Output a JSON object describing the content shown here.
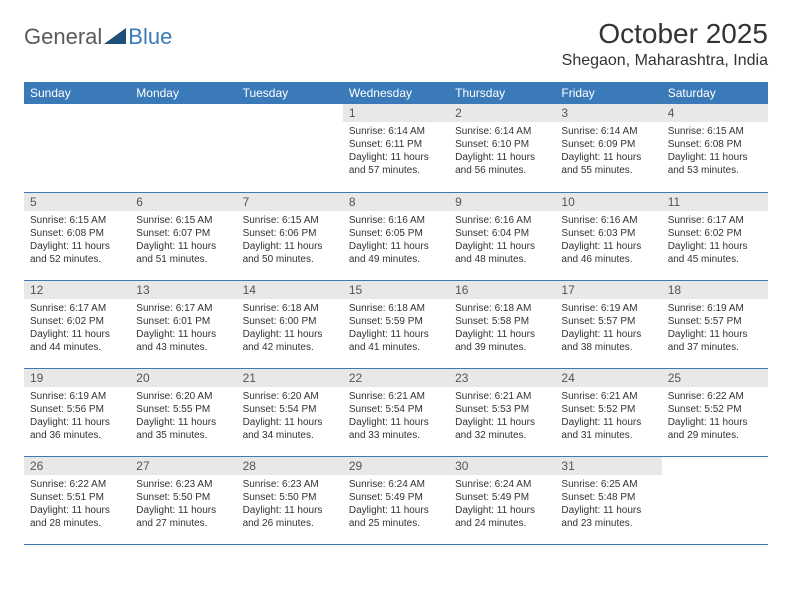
{
  "logo": {
    "text1": "General",
    "text2": "Blue",
    "icon_color": "#1e4e79"
  },
  "title": "October 2025",
  "location": "Shegaon, Maharashtra, India",
  "header_bg": "#3a7ab8",
  "header_fg": "#ffffff",
  "daynum_bg": "#e8e8e8",
  "border_color": "#3a7ab8",
  "body_text_color": "#333333",
  "font_family": "Arial",
  "daynames": [
    "Sunday",
    "Monday",
    "Tuesday",
    "Wednesday",
    "Thursday",
    "Friday",
    "Saturday"
  ],
  "weeks": [
    [
      {
        "n": "",
        "sr": "",
        "ss": "",
        "dl": ""
      },
      {
        "n": "",
        "sr": "",
        "ss": "",
        "dl": ""
      },
      {
        "n": "",
        "sr": "",
        "ss": "",
        "dl": ""
      },
      {
        "n": "1",
        "sr": "Sunrise: 6:14 AM",
        "ss": "Sunset: 6:11 PM",
        "dl": "Daylight: 11 hours and 57 minutes."
      },
      {
        "n": "2",
        "sr": "Sunrise: 6:14 AM",
        "ss": "Sunset: 6:10 PM",
        "dl": "Daylight: 11 hours and 56 minutes."
      },
      {
        "n": "3",
        "sr": "Sunrise: 6:14 AM",
        "ss": "Sunset: 6:09 PM",
        "dl": "Daylight: 11 hours and 55 minutes."
      },
      {
        "n": "4",
        "sr": "Sunrise: 6:15 AM",
        "ss": "Sunset: 6:08 PM",
        "dl": "Daylight: 11 hours and 53 minutes."
      }
    ],
    [
      {
        "n": "5",
        "sr": "Sunrise: 6:15 AM",
        "ss": "Sunset: 6:08 PM",
        "dl": "Daylight: 11 hours and 52 minutes."
      },
      {
        "n": "6",
        "sr": "Sunrise: 6:15 AM",
        "ss": "Sunset: 6:07 PM",
        "dl": "Daylight: 11 hours and 51 minutes."
      },
      {
        "n": "7",
        "sr": "Sunrise: 6:15 AM",
        "ss": "Sunset: 6:06 PM",
        "dl": "Daylight: 11 hours and 50 minutes."
      },
      {
        "n": "8",
        "sr": "Sunrise: 6:16 AM",
        "ss": "Sunset: 6:05 PM",
        "dl": "Daylight: 11 hours and 49 minutes."
      },
      {
        "n": "9",
        "sr": "Sunrise: 6:16 AM",
        "ss": "Sunset: 6:04 PM",
        "dl": "Daylight: 11 hours and 48 minutes."
      },
      {
        "n": "10",
        "sr": "Sunrise: 6:16 AM",
        "ss": "Sunset: 6:03 PM",
        "dl": "Daylight: 11 hours and 46 minutes."
      },
      {
        "n": "11",
        "sr": "Sunrise: 6:17 AM",
        "ss": "Sunset: 6:02 PM",
        "dl": "Daylight: 11 hours and 45 minutes."
      }
    ],
    [
      {
        "n": "12",
        "sr": "Sunrise: 6:17 AM",
        "ss": "Sunset: 6:02 PM",
        "dl": "Daylight: 11 hours and 44 minutes."
      },
      {
        "n": "13",
        "sr": "Sunrise: 6:17 AM",
        "ss": "Sunset: 6:01 PM",
        "dl": "Daylight: 11 hours and 43 minutes."
      },
      {
        "n": "14",
        "sr": "Sunrise: 6:18 AM",
        "ss": "Sunset: 6:00 PM",
        "dl": "Daylight: 11 hours and 42 minutes."
      },
      {
        "n": "15",
        "sr": "Sunrise: 6:18 AM",
        "ss": "Sunset: 5:59 PM",
        "dl": "Daylight: 11 hours and 41 minutes."
      },
      {
        "n": "16",
        "sr": "Sunrise: 6:18 AM",
        "ss": "Sunset: 5:58 PM",
        "dl": "Daylight: 11 hours and 39 minutes."
      },
      {
        "n": "17",
        "sr": "Sunrise: 6:19 AM",
        "ss": "Sunset: 5:57 PM",
        "dl": "Daylight: 11 hours and 38 minutes."
      },
      {
        "n": "18",
        "sr": "Sunrise: 6:19 AM",
        "ss": "Sunset: 5:57 PM",
        "dl": "Daylight: 11 hours and 37 minutes."
      }
    ],
    [
      {
        "n": "19",
        "sr": "Sunrise: 6:19 AM",
        "ss": "Sunset: 5:56 PM",
        "dl": "Daylight: 11 hours and 36 minutes."
      },
      {
        "n": "20",
        "sr": "Sunrise: 6:20 AM",
        "ss": "Sunset: 5:55 PM",
        "dl": "Daylight: 11 hours and 35 minutes."
      },
      {
        "n": "21",
        "sr": "Sunrise: 6:20 AM",
        "ss": "Sunset: 5:54 PM",
        "dl": "Daylight: 11 hours and 34 minutes."
      },
      {
        "n": "22",
        "sr": "Sunrise: 6:21 AM",
        "ss": "Sunset: 5:54 PM",
        "dl": "Daylight: 11 hours and 33 minutes."
      },
      {
        "n": "23",
        "sr": "Sunrise: 6:21 AM",
        "ss": "Sunset: 5:53 PM",
        "dl": "Daylight: 11 hours and 32 minutes."
      },
      {
        "n": "24",
        "sr": "Sunrise: 6:21 AM",
        "ss": "Sunset: 5:52 PM",
        "dl": "Daylight: 11 hours and 31 minutes."
      },
      {
        "n": "25",
        "sr": "Sunrise: 6:22 AM",
        "ss": "Sunset: 5:52 PM",
        "dl": "Daylight: 11 hours and 29 minutes."
      }
    ],
    [
      {
        "n": "26",
        "sr": "Sunrise: 6:22 AM",
        "ss": "Sunset: 5:51 PM",
        "dl": "Daylight: 11 hours and 28 minutes."
      },
      {
        "n": "27",
        "sr": "Sunrise: 6:23 AM",
        "ss": "Sunset: 5:50 PM",
        "dl": "Daylight: 11 hours and 27 minutes."
      },
      {
        "n": "28",
        "sr": "Sunrise: 6:23 AM",
        "ss": "Sunset: 5:50 PM",
        "dl": "Daylight: 11 hours and 26 minutes."
      },
      {
        "n": "29",
        "sr": "Sunrise: 6:24 AM",
        "ss": "Sunset: 5:49 PM",
        "dl": "Daylight: 11 hours and 25 minutes."
      },
      {
        "n": "30",
        "sr": "Sunrise: 6:24 AM",
        "ss": "Sunset: 5:49 PM",
        "dl": "Daylight: 11 hours and 24 minutes."
      },
      {
        "n": "31",
        "sr": "Sunrise: 6:25 AM",
        "ss": "Sunset: 5:48 PM",
        "dl": "Daylight: 11 hours and 23 minutes."
      },
      {
        "n": "",
        "sr": "",
        "ss": "",
        "dl": ""
      }
    ]
  ]
}
